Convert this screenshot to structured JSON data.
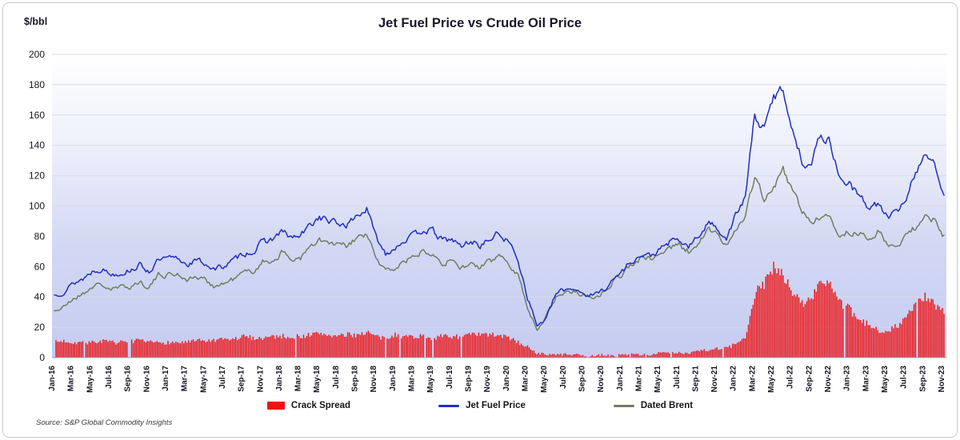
{
  "chart_data": {
    "type": "line",
    "title": "Jet Fuel Price vs Crude Oil Price",
    "ylabel": "$/bbl",
    "ylim": [
      0,
      200
    ],
    "yticks": [
      0,
      20,
      40,
      60,
      80,
      100,
      120,
      140,
      160,
      180,
      200
    ],
    "grid": true,
    "legend_position": "bottom",
    "plot_bg_top": "#ffffff",
    "plot_bg_mid": "#d3d8f4",
    "plot_bg_bottom": "#c5ccf1",
    "x_labels": [
      "Jan-16",
      "Mar-16",
      "May-16",
      "Jul-16",
      "Sep-16",
      "Nov-16",
      "Jan-17",
      "Mar-17",
      "May-17",
      "Jul-17",
      "Sep-17",
      "Nov-17",
      "Jan-18",
      "Mar-18",
      "May-18",
      "Jul-18",
      "Sep-18",
      "Nov-18",
      "Jan-19",
      "Mar-19",
      "May-19",
      "Jul-19",
      "Sep-19",
      "Nov-19",
      "Jan-20",
      "Mar-20",
      "May-20",
      "Jul-20",
      "Sep-20",
      "Nov-20",
      "Jan-21",
      "Mar-21",
      "May-21",
      "Jul-21",
      "Sep-21",
      "Nov-21",
      "Jan-22",
      "Mar-22",
      "May-22",
      "Jul-22",
      "Sep-22",
      "Nov-22",
      "Jan-23",
      "Mar-23",
      "May-23",
      "Jul-23",
      "Sep-23",
      "Nov-23"
    ],
    "x_monthly_note": "monthly values Jan-2016 through Nov-2023",
    "series": [
      {
        "name": "Crack Spread",
        "style": "area-bars",
        "color": "#ee1111",
        "values": [
          10,
          11,
          10,
          10,
          10,
          11,
          10,
          10,
          11,
          11,
          10,
          10,
          10,
          10,
          10,
          11,
          11,
          11,
          12,
          12,
          14,
          13,
          13,
          14,
          14,
          14,
          14,
          15,
          16,
          15,
          14,
          15,
          15,
          17,
          14,
          12,
          15,
          14,
          14,
          14,
          13,
          14,
          14,
          14,
          15,
          15,
          15,
          15,
          13,
          10,
          7,
          3,
          2,
          2,
          2,
          2,
          1,
          1,
          2,
          1,
          2,
          2,
          2,
          2,
          3,
          3,
          3,
          3,
          5,
          5,
          6,
          6,
          9,
          12,
          42,
          48,
          62,
          55,
          42,
          36,
          38,
          52,
          48,
          36,
          32,
          24,
          22,
          18,
          18,
          21,
          26,
          36,
          40,
          35,
          29
        ]
      },
      {
        "name": "Jet Fuel Price",
        "style": "line",
        "color": "#1f2fc0",
        "values": [
          41,
          44,
          49,
          52,
          57,
          59,
          55,
          56,
          58,
          61,
          57,
          64,
          65,
          65,
          62,
          64,
          62,
          58,
          61,
          64,
          69,
          70,
          76,
          78,
          83,
          79,
          80,
          87,
          93,
          90,
          88,
          88,
          94,
          98,
          79,
          69,
          73,
          78,
          80,
          85,
          83,
          77,
          78,
          73,
          77,
          74,
          78,
          82,
          76,
          65,
          40,
          21,
          26,
          42,
          45,
          46,
          42,
          41,
          45,
          51,
          57,
          64,
          67,
          67,
          71,
          76,
          77,
          73,
          79,
          89,
          86,
          79,
          94,
          105,
          160,
          150,
          172,
          178,
          150,
          130,
          128,
          148,
          142,
          118,
          115,
          106,
          100,
          101,
          93,
          95,
          106,
          122,
          136,
          126,
          105
        ]
      },
      {
        "name": "Dated Brent",
        "style": "line",
        "color": "#6d7f62",
        "values": [
          31,
          33,
          39,
          42,
          47,
          48,
          45,
          46,
          47,
          50,
          47,
          54,
          55,
          55,
          52,
          53,
          51,
          47,
          49,
          52,
          56,
          57,
          63,
          64,
          69,
          65,
          66,
          72,
          77,
          75,
          74,
          73,
          79,
          81,
          65,
          57,
          59,
          64,
          66,
          71,
          70,
          63,
          64,
          59,
          62,
          59,
          63,
          67,
          63,
          55,
          33,
          18,
          29,
          40,
          43,
          44,
          41,
          40,
          43,
          50,
          55,
          62,
          65,
          65,
          68,
          73,
          74,
          70,
          74,
          84,
          81,
          74,
          86,
          94,
          118,
          105,
          112,
          123,
          110,
          97,
          90,
          93,
          91,
          81,
          83,
          82,
          78,
          83,
          75,
          74,
          80,
          86,
          93,
          90,
          80
        ]
      }
    ],
    "source": "Source:  S&P Global Commodity Insights"
  }
}
